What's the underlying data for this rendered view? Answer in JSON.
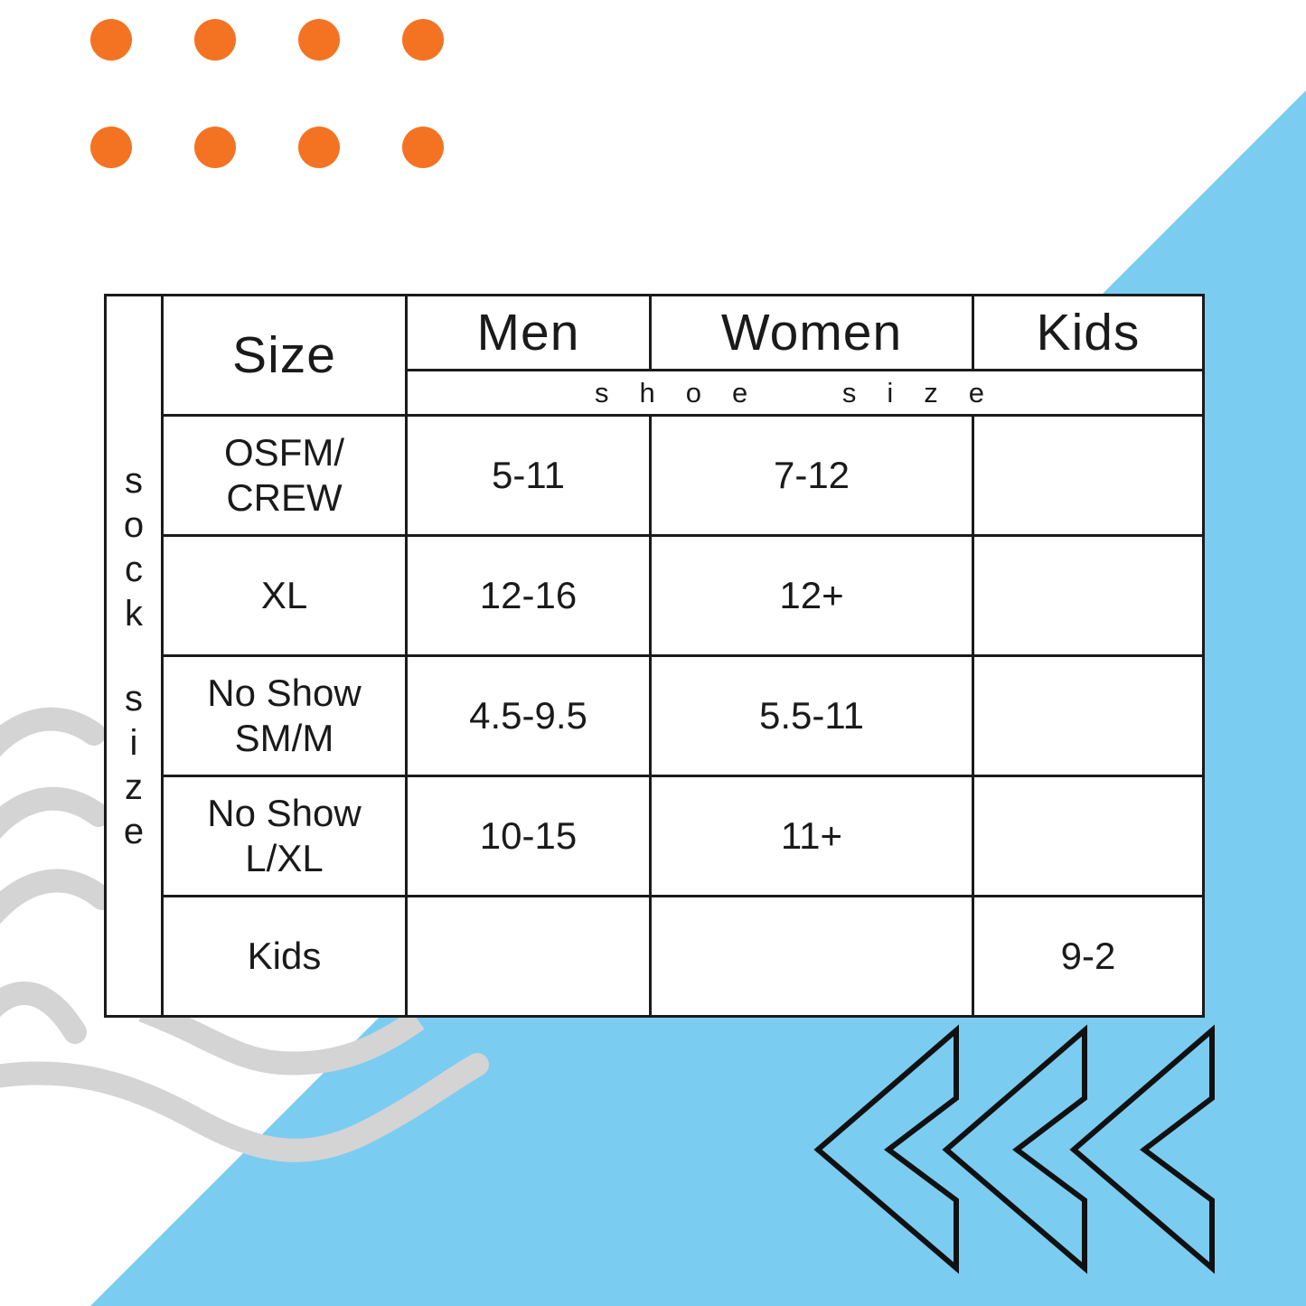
{
  "title_hint": "sock size vs shoe size conversion chart",
  "decor": {
    "dot_color": "#f47323",
    "blue_color": "#7bccf1",
    "wave_color": "#d4d4d4",
    "line_color": "#111111",
    "dot_grid": "2 rows x 4 columns",
    "chevron_count": "3 left-pointing chevron arrows"
  },
  "table": {
    "vertical_label": "sock size",
    "corner_header": "Size",
    "columns": [
      "Men",
      "Women",
      "Kids"
    ],
    "subheader": "shoe size",
    "rows": [
      {
        "label": "OSFM/\nCREW",
        "men": "5-11",
        "women": "7-12",
        "kids": ""
      },
      {
        "label": "XL",
        "men": "12-16",
        "women": "12+",
        "kids": ""
      },
      {
        "label": "No Show\nSM/M",
        "men": "4.5-9.5",
        "women": "5.5-11",
        "kids": ""
      },
      {
        "label": "No Show\nL/XL",
        "men": "10-15",
        "women": "11+",
        "kids": ""
      },
      {
        "label": "Kids",
        "men": "",
        "women": "",
        "kids": "9-2"
      }
    ]
  },
  "chart_data": {
    "type": "table",
    "title": "sock size / shoe size chart",
    "row_axis_label": "sock size",
    "column_group_label": "shoe size",
    "columns": [
      "Size",
      "Men",
      "Women",
      "Kids"
    ],
    "rows": [
      [
        "OSFM/CREW",
        "5-11",
        "7-12",
        ""
      ],
      [
        "XL",
        "12-16",
        "12+",
        ""
      ],
      [
        "No Show SM/M",
        "4.5-9.5",
        "5.5-11",
        ""
      ],
      [
        "No Show L/XL",
        "10-15",
        "11+",
        ""
      ],
      [
        "Kids",
        "",
        "",
        "9-2"
      ]
    ]
  }
}
